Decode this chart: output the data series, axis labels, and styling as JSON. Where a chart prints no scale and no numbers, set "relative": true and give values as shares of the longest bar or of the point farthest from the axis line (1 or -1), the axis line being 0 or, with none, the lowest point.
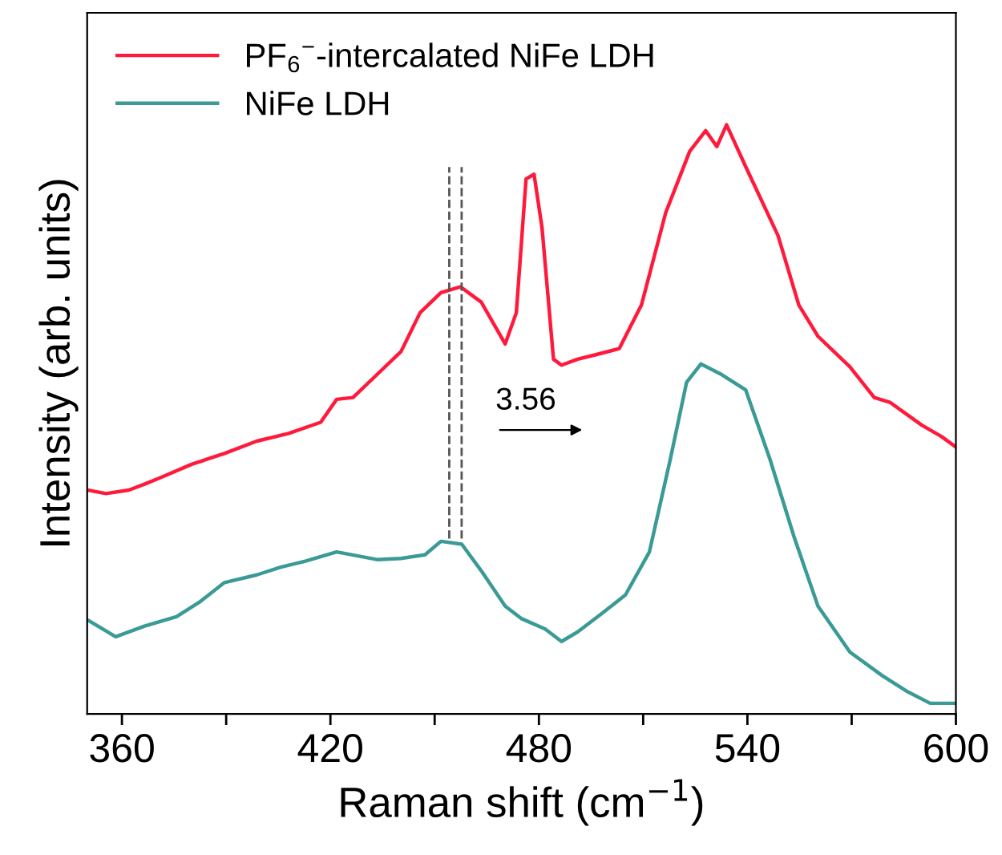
{
  "chart_data": {
    "type": "line",
    "relative": true,
    "xlabel": "Raman shift (cm$^{−1}$)",
    "ylabel": "Intensity (arb. units)",
    "xlim": [
      350,
      600
    ],
    "xticks": [
      360,
      {
        "value": 390,
        "label": null
      },
      420,
      {
        "value": 450,
        "label": null
      },
      480,
      {
        "value": 510,
        "label": null
      },
      540,
      {
        "value": 570,
        "label": null
      },
      600
    ],
    "legend": "top left",
    "grid": false,
    "marker": "none",
    "line_style": "solid",
    "ref_lines": [
      {
        "axis": "x",
        "value": 454.2,
        "color": "#555555",
        "line_style": "dashed"
      },
      {
        "axis": "x",
        "value": 457.76,
        "color": "#555555",
        "line_style": "dashed"
      }
    ],
    "annotations": [
      "3.56"
    ],
    "series": [
      {
        "name": "PF$_{6}$$^{−}$-intercalated NiFe LDH",
        "color": "#ff1a3c",
        "x": [
          350,
          355.4,
          362,
          366.5,
          371.1,
          380.2,
          389.5,
          398.8,
          408,
          417.2,
          421.8,
          426.5,
          433.4,
          440.3,
          445.8,
          451.8,
          457.4,
          463.4,
          470.3,
          473.5,
          476.3,
          478.6,
          480.9,
          484.2,
          486.5,
          491.1,
          496.6,
          503.1,
          509.5,
          516.5,
          523.4,
          528,
          531.2,
          534,
          539.5,
          548.8,
          554.8,
          560.3,
          569.5,
          576.5,
          581,
          590.2,
          595.8,
          600
        ],
        "values": [
          0.38,
          0.374,
          0.38,
          0.39,
          0.401,
          0.424,
          0.442,
          0.463,
          0.476,
          0.495,
          0.534,
          0.537,
          0.576,
          0.615,
          0.681,
          0.715,
          0.725,
          0.699,
          0.628,
          0.681,
          0.908,
          0.916,
          0.825,
          0.602,
          0.592,
          0.602,
          0.61,
          0.62,
          0.694,
          0.851,
          0.955,
          0.99,
          0.963,
          1.0,
          0.929,
          0.812,
          0.694,
          0.641,
          0.589,
          0.537,
          0.529,
          0.49,
          0.471,
          0.453
        ]
      },
      {
        "name": "NiFe LDH",
        "color": "#3a9a96",
        "x": [
          350,
          358.2,
          366.5,
          375.7,
          382.6,
          389.5,
          398.8,
          405.7,
          412.6,
          421.8,
          433.4,
          440.3,
          447.2,
          451.8,
          457.8,
          463.4,
          470.3,
          474.9,
          481.8,
          486.5,
          491.1,
          498,
          504.9,
          511.8,
          517.8,
          522.5,
          526.6,
          532.6,
          539.5,
          546.5,
          553.4,
          560.3,
          569.5,
          578.8,
          585.7,
          592.6,
          600
        ],
        "values": [
          0.16,
          0.131,
          0.149,
          0.165,
          0.191,
          0.223,
          0.236,
          0.249,
          0.259,
          0.275,
          0.262,
          0.264,
          0.27,
          0.293,
          0.288,
          0.243,
          0.183,
          0.162,
          0.144,
          0.123,
          0.139,
          0.17,
          0.202,
          0.275,
          0.432,
          0.563,
          0.594,
          0.576,
          0.55,
          0.432,
          0.301,
          0.183,
          0.105,
          0.065,
          0.039,
          0.018,
          0.018
        ]
      }
    ]
  }
}
